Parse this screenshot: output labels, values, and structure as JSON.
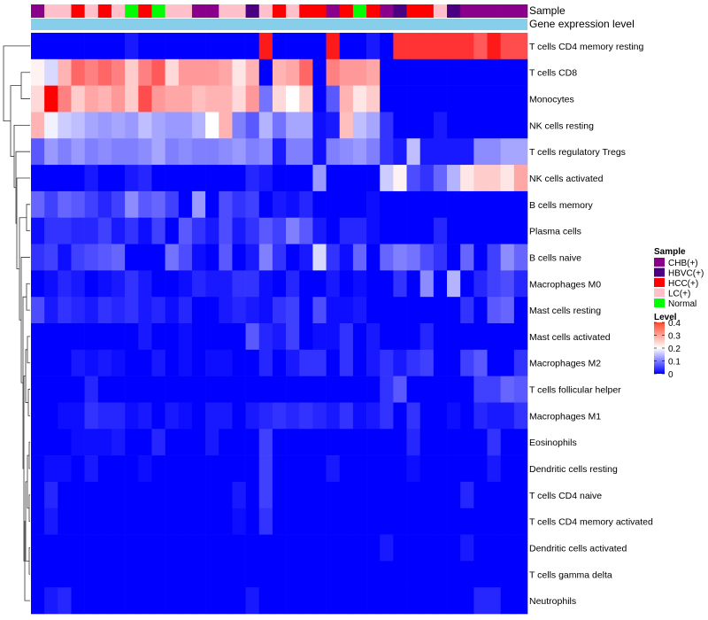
{
  "chart_data": {
    "type": "heatmap",
    "annotation_labels": [
      "Sample",
      "Gene expression level"
    ],
    "rows": [
      "T cells CD4 memory resting",
      "T cells CD8",
      "Monocytes",
      "NK cells resting",
      "T cells regulatory  Tregs",
      "NK cells activated",
      "B cells memory",
      "Plasma cells",
      "B cells naive",
      "Macrophages M0",
      "Mast cells resting",
      "Mast cells activated",
      "Macrophages M2",
      "T cells follicular helper",
      "Macrophages M1",
      "Eosinophils",
      "Dendritic cells resting",
      "T cells CD4 naive",
      "T cells CD4 memory activated",
      "Dendritic cells activated",
      "T cells gamma delta",
      "Neutrophils"
    ],
    "sample_groups": [
      "CHB",
      "LC",
      "LC",
      "HCC",
      "LC",
      "HCC",
      "LC",
      "Normal",
      "HCC",
      "Normal",
      "LC",
      "LC",
      "CHB",
      "CHB",
      "LC",
      "LC",
      "HBVC",
      "LC",
      "HCC",
      "LC",
      "HCC",
      "HCC",
      "CHB",
      "HCC",
      "Normal",
      "HCC",
      "CHB",
      "HBVC",
      "HCC",
      "HCC",
      "LC",
      "HBVC",
      "CHB",
      "CHB",
      "CHB",
      "CHB",
      "CHB"
    ],
    "values": [
      [
        0.0,
        0.0,
        0.0,
        0.0,
        0.0,
        0.0,
        0.0,
        0.02,
        0.0,
        0.0,
        0.0,
        0.0,
        0.0,
        0.0,
        0.0,
        0.0,
        0.0,
        0.38,
        0.0,
        0.0,
        0.0,
        0.0,
        0.38,
        0.0,
        0.0,
        0.02,
        0.0,
        0.36,
        0.36,
        0.36,
        0.36,
        0.36,
        0.36,
        0.33,
        0.38,
        0.34,
        0.34
      ],
      [
        0.21,
        0.17,
        0.26,
        0.32,
        0.3,
        0.32,
        0.3,
        0.24,
        0.3,
        0.33,
        0.23,
        0.28,
        0.28,
        0.28,
        0.27,
        0.22,
        0.26,
        0.0,
        0.26,
        0.27,
        0.32,
        0.0,
        0.3,
        0.28,
        0.28,
        0.27,
        0.0,
        0.0,
        0.0,
        0.0,
        0.0,
        0.0,
        0.0,
        0.0,
        0.0,
        0.0,
        0.0
      ],
      [
        0.23,
        0.4,
        0.3,
        0.24,
        0.27,
        0.26,
        0.28,
        0.24,
        0.34,
        0.28,
        0.27,
        0.27,
        0.25,
        0.26,
        0.26,
        0.23,
        0.28,
        0.09,
        0.23,
        0.2,
        0.24,
        0.0,
        0.07,
        0.26,
        0.22,
        0.24,
        0.0,
        0.0,
        0.0,
        0.0,
        0.0,
        0.0,
        0.0,
        0.0,
        0.0,
        0.0,
        0.0
      ],
      [
        0.26,
        0.19,
        0.16,
        0.15,
        0.13,
        0.12,
        0.13,
        0.12,
        0.15,
        0.13,
        0.12,
        0.12,
        0.14,
        0.2,
        0.26,
        0.1,
        0.07,
        0.14,
        0.09,
        0.13,
        0.13,
        0.01,
        0.02,
        0.25,
        0.15,
        0.13,
        0.04,
        0.0,
        0.0,
        0.0,
        0.02,
        0.0,
        0.0,
        0.0,
        0.0,
        0.0,
        0.0
      ],
      [
        0.07,
        0.12,
        0.1,
        0.12,
        0.1,
        0.11,
        0.1,
        0.1,
        0.11,
        0.13,
        0.1,
        0.11,
        0.1,
        0.1,
        0.11,
        0.12,
        0.1,
        0.11,
        0.02,
        0.1,
        0.1,
        0.01,
        0.1,
        0.11,
        0.12,
        0.1,
        0.04,
        0.02,
        0.15,
        0.02,
        0.02,
        0.02,
        0.02,
        0.11,
        0.11,
        0.13,
        0.13
      ],
      [
        0.0,
        0.0,
        0.0,
        0.0,
        0.02,
        0.0,
        0.0,
        0.02,
        0.03,
        0.0,
        0.0,
        0.0,
        0.0,
        0.0,
        0.0,
        0.0,
        0.03,
        0.02,
        0.0,
        0.0,
        0.0,
        0.12,
        0.0,
        0.0,
        0.0,
        0.0,
        0.16,
        0.21,
        0.06,
        0.04,
        0.08,
        0.14,
        0.22,
        0.24,
        0.24,
        0.22,
        0.27
      ],
      [
        0.08,
        0.05,
        0.08,
        0.07,
        0.05,
        0.03,
        0.05,
        0.11,
        0.07,
        0.08,
        0.05,
        0.0,
        0.12,
        0.0,
        0.06,
        0.04,
        0.05,
        0.0,
        0.02,
        0.01,
        0.03,
        0.0,
        0.0,
        0.0,
        0.0,
        0.01,
        0.0,
        0.0,
        0.0,
        0.0,
        0.0,
        0.0,
        0.0,
        0.0,
        0.0,
        0.0,
        0.0
      ],
      [
        0.01,
        0.04,
        0.04,
        0.03,
        0.03,
        0.05,
        0.02,
        0.04,
        0.01,
        0.05,
        0.0,
        0.07,
        0.04,
        0.02,
        0.06,
        0.02,
        0.04,
        0.07,
        0.05,
        0.1,
        0.07,
        0.02,
        0.0,
        0.03,
        0.03,
        0.01,
        0.0,
        0.0,
        0.0,
        0.0,
        0.03,
        0.0,
        0.0,
        0.0,
        0.0,
        0.0,
        0.0
      ],
      [
        0.04,
        0.05,
        0.01,
        0.05,
        0.06,
        0.07,
        0.08,
        0.0,
        0.0,
        0.0,
        0.09,
        0.06,
        0.01,
        0.0,
        0.07,
        0.0,
        0.02,
        0.1,
        0.04,
        0.0,
        0.02,
        0.17,
        0.04,
        0.01,
        0.08,
        0.0,
        0.08,
        0.1,
        0.09,
        0.06,
        0.04,
        0.0,
        0.08,
        0.0,
        0.05,
        0.11,
        0.08
      ],
      [
        0.0,
        0.01,
        0.03,
        0.02,
        0.0,
        0.01,
        0.02,
        0.04,
        0.02,
        0.0,
        0.0,
        0.01,
        0.03,
        0.02,
        0.02,
        0.04,
        0.04,
        0.01,
        0.0,
        0.03,
        0.0,
        0.0,
        0.02,
        0.0,
        0.01,
        0.0,
        0.0,
        0.04,
        0.0,
        0.11,
        0.0,
        0.14,
        0.0,
        0.03,
        0.05,
        0.06,
        0.03
      ],
      [
        0.06,
        0.02,
        0.04,
        0.03,
        0.02,
        0.04,
        0.03,
        0.04,
        0.02,
        0.03,
        0.01,
        0.03,
        0.0,
        0.0,
        0.02,
        0.03,
        0.02,
        0.01,
        0.04,
        0.05,
        0.0,
        0.06,
        0.01,
        0.01,
        0.02,
        0.0,
        0.0,
        0.0,
        0.0,
        0.0,
        0.0,
        0.0,
        0.04,
        0.0,
        0.07,
        0.08,
        0.0
      ],
      [
        0.0,
        0.0,
        0.0,
        0.0,
        0.0,
        0.0,
        0.0,
        0.0,
        0.02,
        0.0,
        0.0,
        0.01,
        0.0,
        0.0,
        0.0,
        0.0,
        0.07,
        0.03,
        0.02,
        0.05,
        0.0,
        0.01,
        0.01,
        0.04,
        0.0,
        0.02,
        0.0,
        0.0,
        0.0,
        0.03,
        0.0,
        0.0,
        0.0,
        0.0,
        0.0,
        0.0,
        0.0
      ],
      [
        0.0,
        0.0,
        0.0,
        0.02,
        0.01,
        0.02,
        0.01,
        0.0,
        0.0,
        0.02,
        0.0,
        0.01,
        0.0,
        0.01,
        0.01,
        0.0,
        0.0,
        0.03,
        0.0,
        0.02,
        0.04,
        0.04,
        0.0,
        0.04,
        0.0,
        0.02,
        0.04,
        0.02,
        0.04,
        0.05,
        0.0,
        0.0,
        0.05,
        0.07,
        0.0,
        0.0,
        0.04
      ],
      [
        0.0,
        0.0,
        0.0,
        0.0,
        0.03,
        0.0,
        0.0,
        0.0,
        0.0,
        0.0,
        0.0,
        0.0,
        0.0,
        0.0,
        0.0,
        0.0,
        0.0,
        0.0,
        0.0,
        0.0,
        0.0,
        0.0,
        0.0,
        0.0,
        0.0,
        0.0,
        0.04,
        0.07,
        0.0,
        0.0,
        0.0,
        0.0,
        0.0,
        0.05,
        0.05,
        0.08,
        0.07
      ],
      [
        0.0,
        0.0,
        0.01,
        0.01,
        0.04,
        0.03,
        0.03,
        0.01,
        0.02,
        0.0,
        0.02,
        0.01,
        0.0,
        0.02,
        0.02,
        0.0,
        0.02,
        0.03,
        0.04,
        0.03,
        0.04,
        0.03,
        0.02,
        0.04,
        0.01,
        0.02,
        0.04,
        0.0,
        0.04,
        0.0,
        0.0,
        0.01,
        0.0,
        0.03,
        0.02,
        0.02,
        0.04
      ],
      [
        0.0,
        0.0,
        0.0,
        0.01,
        0.01,
        0.01,
        0.02,
        0.0,
        0.0,
        0.03,
        0.0,
        0.0,
        0.0,
        0.02,
        0.0,
        0.0,
        0.0,
        0.05,
        0.0,
        0.0,
        0.0,
        0.0,
        0.0,
        0.0,
        0.0,
        0.0,
        0.0,
        0.0,
        0.03,
        0.0,
        0.0,
        0.0,
        0.0,
        0.0,
        0.04,
        0.0,
        0.0
      ],
      [
        0.0,
        0.01,
        0.01,
        0.0,
        0.02,
        0.0,
        0.0,
        0.0,
        0.01,
        0.0,
        0.0,
        0.0,
        0.0,
        0.0,
        0.0,
        0.0,
        0.0,
        0.05,
        0.0,
        0.0,
        0.0,
        0.0,
        0.02,
        0.0,
        0.0,
        0.0,
        0.0,
        0.0,
        0.01,
        0.0,
        0.0,
        0.0,
        0.0,
        0.0,
        0.02,
        0.0,
        0.0
      ],
      [
        0.0,
        0.03,
        0.0,
        0.0,
        0.0,
        0.0,
        0.0,
        0.0,
        0.0,
        0.0,
        0.0,
        0.0,
        0.0,
        0.0,
        0.0,
        0.02,
        0.0,
        0.05,
        0.0,
        0.0,
        0.0,
        0.0,
        0.0,
        0.0,
        0.0,
        0.0,
        0.0,
        0.0,
        0.0,
        0.0,
        0.0,
        0.0,
        0.03,
        0.0,
        0.0,
        0.0,
        0.0
      ],
      [
        0.0,
        0.02,
        0.0,
        0.0,
        0.0,
        0.0,
        0.0,
        0.0,
        0.0,
        0.0,
        0.0,
        0.0,
        0.0,
        0.0,
        0.0,
        0.01,
        0.0,
        0.04,
        0.0,
        0.0,
        0.0,
        0.0,
        0.0,
        0.0,
        0.0,
        0.0,
        0.0,
        0.0,
        0.0,
        0.0,
        0.0,
        0.0,
        0.0,
        0.0,
        0.0,
        0.0,
        0.0
      ],
      [
        0.0,
        0.0,
        0.0,
        0.0,
        0.0,
        0.0,
        0.0,
        0.0,
        0.0,
        0.0,
        0.0,
        0.0,
        0.0,
        0.0,
        0.0,
        0.0,
        0.0,
        0.0,
        0.0,
        0.0,
        0.0,
        0.0,
        0.0,
        0.0,
        0.0,
        0.0,
        0.02,
        0.0,
        0.0,
        0.0,
        0.0,
        0.0,
        0.02,
        0.0,
        0.0,
        0.0,
        0.0
      ],
      [
        0.0,
        0.0,
        0.0,
        0.0,
        0.0,
        0.0,
        0.0,
        0.0,
        0.0,
        0.0,
        0.0,
        0.0,
        0.0,
        0.0,
        0.0,
        0.0,
        0.0,
        0.0,
        0.0,
        0.0,
        0.0,
        0.0,
        0.0,
        0.0,
        0.0,
        0.0,
        0.0,
        0.0,
        0.0,
        0.0,
        0.0,
        0.0,
        0.0,
        0.0,
        0.0,
        0.0,
        0.0
      ],
      [
        0.0,
        0.02,
        0.03,
        0.0,
        0.0,
        0.0,
        0.0,
        0.0,
        0.0,
        0.0,
        0.0,
        0.0,
        0.0,
        0.0,
        0.0,
        0.0,
        0.02,
        0.0,
        0.0,
        0.0,
        0.0,
        0.0,
        0.0,
        0.0,
        0.0,
        0.0,
        0.0,
        0.0,
        0.0,
        0.0,
        0.0,
        0.0,
        0.0,
        0.03,
        0.03,
        0.0,
        0.0
      ]
    ],
    "legend": {
      "sample_title": "Sample",
      "sample_entries": [
        {
          "key": "CHB",
          "label": "CHB(+)",
          "color": "#8B008B"
        },
        {
          "key": "HBVC",
          "label": "HBVC(+)",
          "color": "#4B0082"
        },
        {
          "key": "HCC",
          "label": "HCC(+)",
          "color": "#FF0000"
        },
        {
          "key": "LC",
          "label": "LC(+)",
          "color": "#FFC0CB"
        },
        {
          "key": "Normal",
          "label": "Normal",
          "color": "#00FF00"
        }
      ],
      "level_title": "Level",
      "level_ticks": [
        "0.4",
        "0.3",
        "0.2",
        "0.1",
        "0"
      ],
      "level_range": [
        0,
        0.4
      ]
    },
    "gene_expression_color": "#87CEEB",
    "color_scale": {
      "low": "#0000FF",
      "mid": "#FFFFFF",
      "high": "#FF0000",
      "range": [
        0,
        0.4
      ]
    }
  }
}
